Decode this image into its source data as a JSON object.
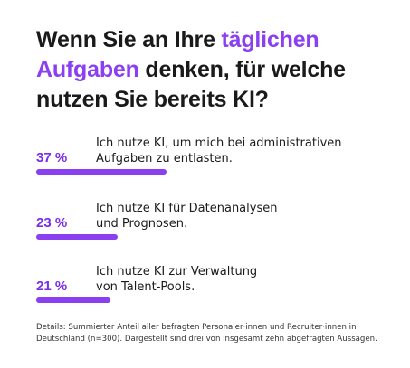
{
  "header": {
    "title_part1": "Wenn Sie an Ihre ",
    "title_accent": "täglichen Aufgaben",
    "title_part2": " denken, für welche nutzen Sie bereits KI?"
  },
  "colors": {
    "accent": "#8a3ff0",
    "percent_text": "#7a2fe6",
    "text": "#1a1a1a"
  },
  "chart_data": {
    "type": "bar",
    "orientation": "horizontal",
    "title": "Wenn Sie an Ihre täglichen Aufgaben denken, für welche nutzen Sie bereits KI?",
    "unit": "%",
    "ylim": [
      0,
      100
    ],
    "categories": [
      "Ich nutze KI, um mich bei administrativen Aufgaben zu entlasten.",
      "Ich nutze KI für Datenanalysen und Prognosen.",
      "Ich nutze KI zur Verwaltung von Talent-Pools."
    ],
    "values": [
      37,
      23,
      21
    ],
    "value_labels": [
      "37 %",
      "23 %",
      "21 %"
    ],
    "label_lines": [
      [
        "Ich nutze KI, um mich bei administrativen",
        "Aufgaben zu entlasten."
      ],
      [
        "Ich nutze KI für Datenanalysen",
        "und Prognosen."
      ],
      [
        "Ich nutze KI zur Verwaltung",
        "von Talent-Pools."
      ]
    ]
  },
  "footnote": {
    "line1": "Details: Summierter Anteil aller befragten Personaler·innen und Recruiter·innen in",
    "line2": "Deutschland (n=300). Dargestellt sind drei von insgesamt zehn abgefragten Aussagen."
  }
}
